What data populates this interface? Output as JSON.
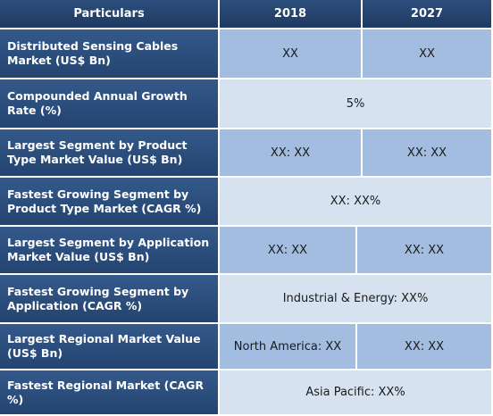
{
  "header": {
    "particulars": "Particulars",
    "year1": "2018",
    "year2": "2027"
  },
  "rows": [
    {
      "label": "Distributed Sensing Cables Market (US$ Bn)",
      "v2018": "XX",
      "v2027": "XX"
    },
    {
      "label": "Compounded Annual Growth Rate (%)",
      "value": "5%"
    },
    {
      "label": "Largest Segment by Product Type Market Value (US$ Bn)",
      "v2018": "XX: XX",
      "v2027": "XX: XX"
    },
    {
      "label": "Fastest Growing Segment by Product Type Market (CAGR %)",
      "value": "XX: XX%"
    },
    {
      "label": "Largest Segment by Application Market Value (US$ Bn)",
      "v2018": "XX: XX",
      "v2027": "XX: XX"
    },
    {
      "label": "Fastest Growing Segment by Application (CAGR %)",
      "value": "Industrial & Energy: XX%"
    },
    {
      "label": "Largest Regional Market Value (US$ Bn)",
      "v2018": "North America: XX",
      "v2027": "XX: XX"
    },
    {
      "label": "Fastest Regional Market (CAGR %)",
      "value": "Asia Pacific: XX%"
    }
  ],
  "colors": {
    "header_bg": "#1f3a61",
    "label_bg": "#2c4e7c",
    "value_blue": "#a3bde0",
    "value_light": "#d7e2f0"
  }
}
